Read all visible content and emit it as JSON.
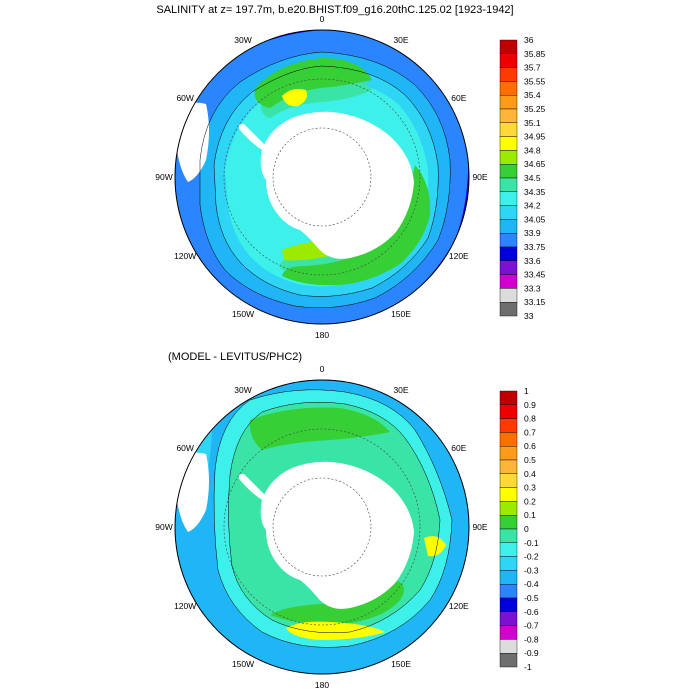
{
  "top_panel": {
    "title": "SALINITY at z= 197.7m, b.e20.BHIST.f09_g16.20thC.125.02 [1923-1942]",
    "longitude_labels": [
      "0",
      "30E",
      "60E",
      "90E",
      "120E",
      "150E",
      "180",
      "150W",
      "120W",
      "90W",
      "60W",
      "30W"
    ],
    "colorbar": {
      "labels": [
        "36",
        "35.85",
        "35.7",
        "35.55",
        "35.4",
        "35.25",
        "35.1",
        "34.95",
        "34.8",
        "34.65",
        "34.5",
        "34.35",
        "34.2",
        "34.05",
        "33.9",
        "33.75",
        "33.6",
        "33.45",
        "33.3",
        "33.15",
        "33"
      ],
      "colors": [
        "#c00000",
        "#ee0000",
        "#ff3a00",
        "#ff6e00",
        "#ff9a1a",
        "#ffb43a",
        "#ffd83a",
        "#ffff00",
        "#9bea00",
        "#36cf36",
        "#3ae3a6",
        "#3ef0ea",
        "#2ed5f5",
        "#20b5f5",
        "#2a85ff",
        "#0000dd",
        "#7a12d0",
        "#d000d0",
        "#dcdcdc",
        "#6e6e6e"
      ]
    }
  },
  "bottom_panel": {
    "title": "(MODEL - LEVITUS/PHC2)",
    "longitude_labels": [
      "0",
      "30E",
      "60E",
      "90E",
      "120E",
      "150E",
      "180",
      "150W",
      "120W",
      "90W",
      "60W",
      "30W"
    ],
    "colorbar": {
      "labels": [
        "1",
        "0.9",
        "0.8",
        "0.7",
        "0.6",
        "0.5",
        "0.4",
        "0.3",
        "0.2",
        "0.1",
        "0",
        "-0.1",
        "-0.2",
        "-0.3",
        "-0.4",
        "-0.5",
        "-0.6",
        "-0.7",
        "-0.8",
        "-0.9",
        "-1"
      ],
      "colors": [
        "#c00000",
        "#ee0000",
        "#ff3a00",
        "#ff6e00",
        "#ff9a1a",
        "#ffb43a",
        "#ffd83a",
        "#ffff00",
        "#9bea00",
        "#36cf36",
        "#3ae3a6",
        "#3ef0ea",
        "#2ed5f5",
        "#20b5f5",
        "#2a85ff",
        "#0000dd",
        "#7a12d0",
        "#d000d0",
        "#dcdcdc",
        "#6e6e6e"
      ]
    }
  }
}
